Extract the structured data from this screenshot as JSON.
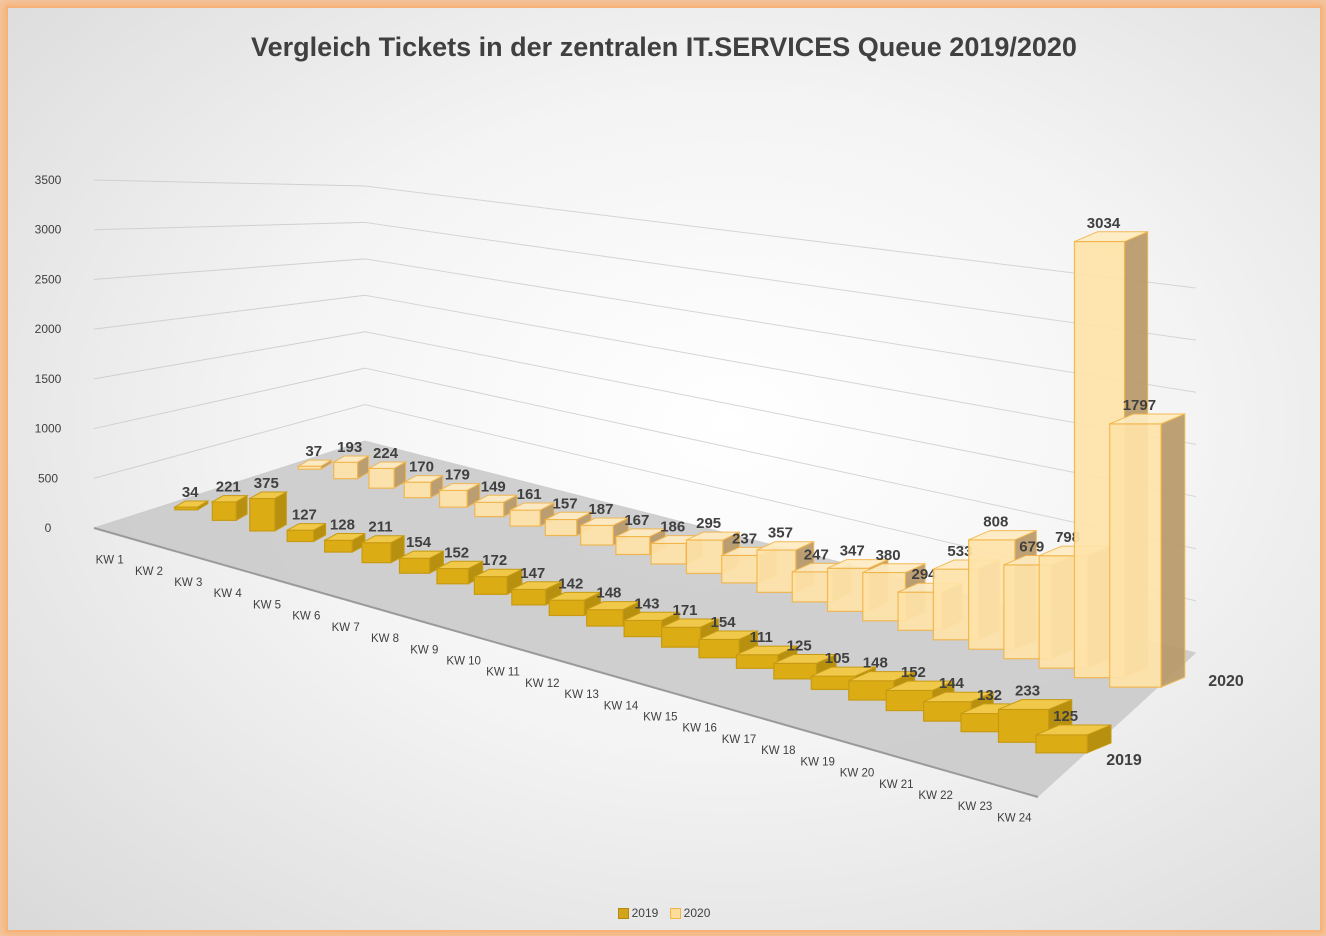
{
  "chart_data": {
    "type": "bar",
    "variant": "3d-column",
    "title": "Vergleich Tickets in der zentralen IT.SERVICES Queue 2019/2020",
    "categories": [
      "KW 1",
      "KW 2",
      "KW 3",
      "KW 4",
      "KW 5",
      "KW 6",
      "KW 7",
      "KW 8",
      "KW 9",
      "KW 10",
      "KW 11",
      "KW 12",
      "KW 13",
      "KW 14",
      "KW 15",
      "KW 16",
      "KW 17",
      "KW 18",
      "KW 19",
      "KW 20",
      "KW 21",
      "KW 22",
      "KW 23",
      "KW 24"
    ],
    "series": [
      {
        "name": "2019",
        "color": "#d4a51a",
        "values": [
          34,
          221,
          375,
          127,
          128,
          211,
          154,
          152,
          172,
          147,
          142,
          148,
          143,
          171,
          154,
          111,
          125,
          105,
          148,
          152,
          144,
          132,
          233,
          125
        ]
      },
      {
        "name": "2020",
        "color": "#ffdd99",
        "values": [
          37,
          193,
          224,
          170,
          179,
          149,
          161,
          157,
          187,
          167,
          186,
          295,
          237,
          357,
          247,
          347,
          380,
          294,
          533,
          808,
          679,
          798,
          3034,
          1797
        ]
      }
    ],
    "y_ticks": [
      "0",
      "500",
      "1000",
      "1500",
      "2000",
      "2500",
      "3000",
      "3500"
    ],
    "ylim": [
      0,
      3500
    ],
    "grid": true,
    "legend_position": "bottom",
    "data_labels": true
  }
}
